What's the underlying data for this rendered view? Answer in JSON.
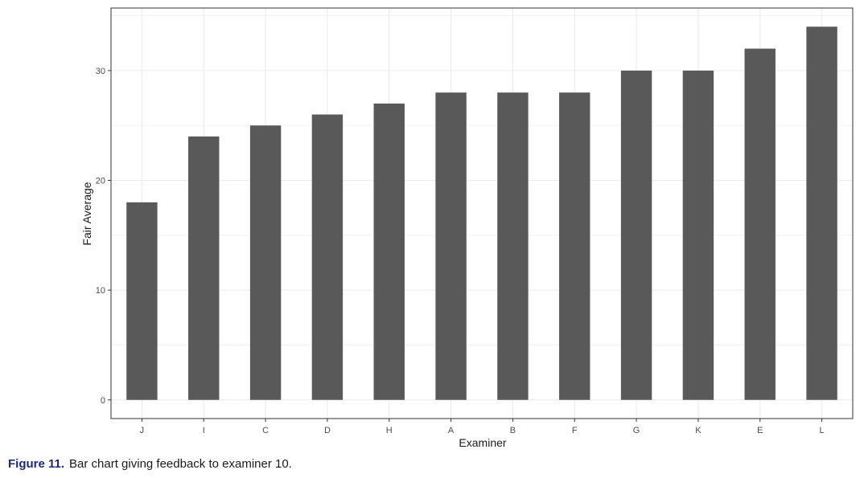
{
  "chart_data": {
    "type": "bar",
    "categories": [
      "J",
      "I",
      "C",
      "D",
      "H",
      "A",
      "B",
      "F",
      "G",
      "K",
      "E",
      "L"
    ],
    "values": [
      18,
      24,
      25,
      26,
      27,
      28,
      28,
      28,
      30,
      30,
      32,
      34
    ],
    "xlabel": "Examiner",
    "ylabel": "Fair Average",
    "yticks": [
      0,
      10,
      20,
      30
    ],
    "ylim": [
      -1.7,
      35.7
    ],
    "grid": true,
    "bar_color": "#595959",
    "grid_color": "#ebebeb",
    "panel_border_color": "#333333"
  },
  "caption": {
    "label": "Figure 11.",
    "text": "Bar chart giving feedback to examiner 10."
  }
}
